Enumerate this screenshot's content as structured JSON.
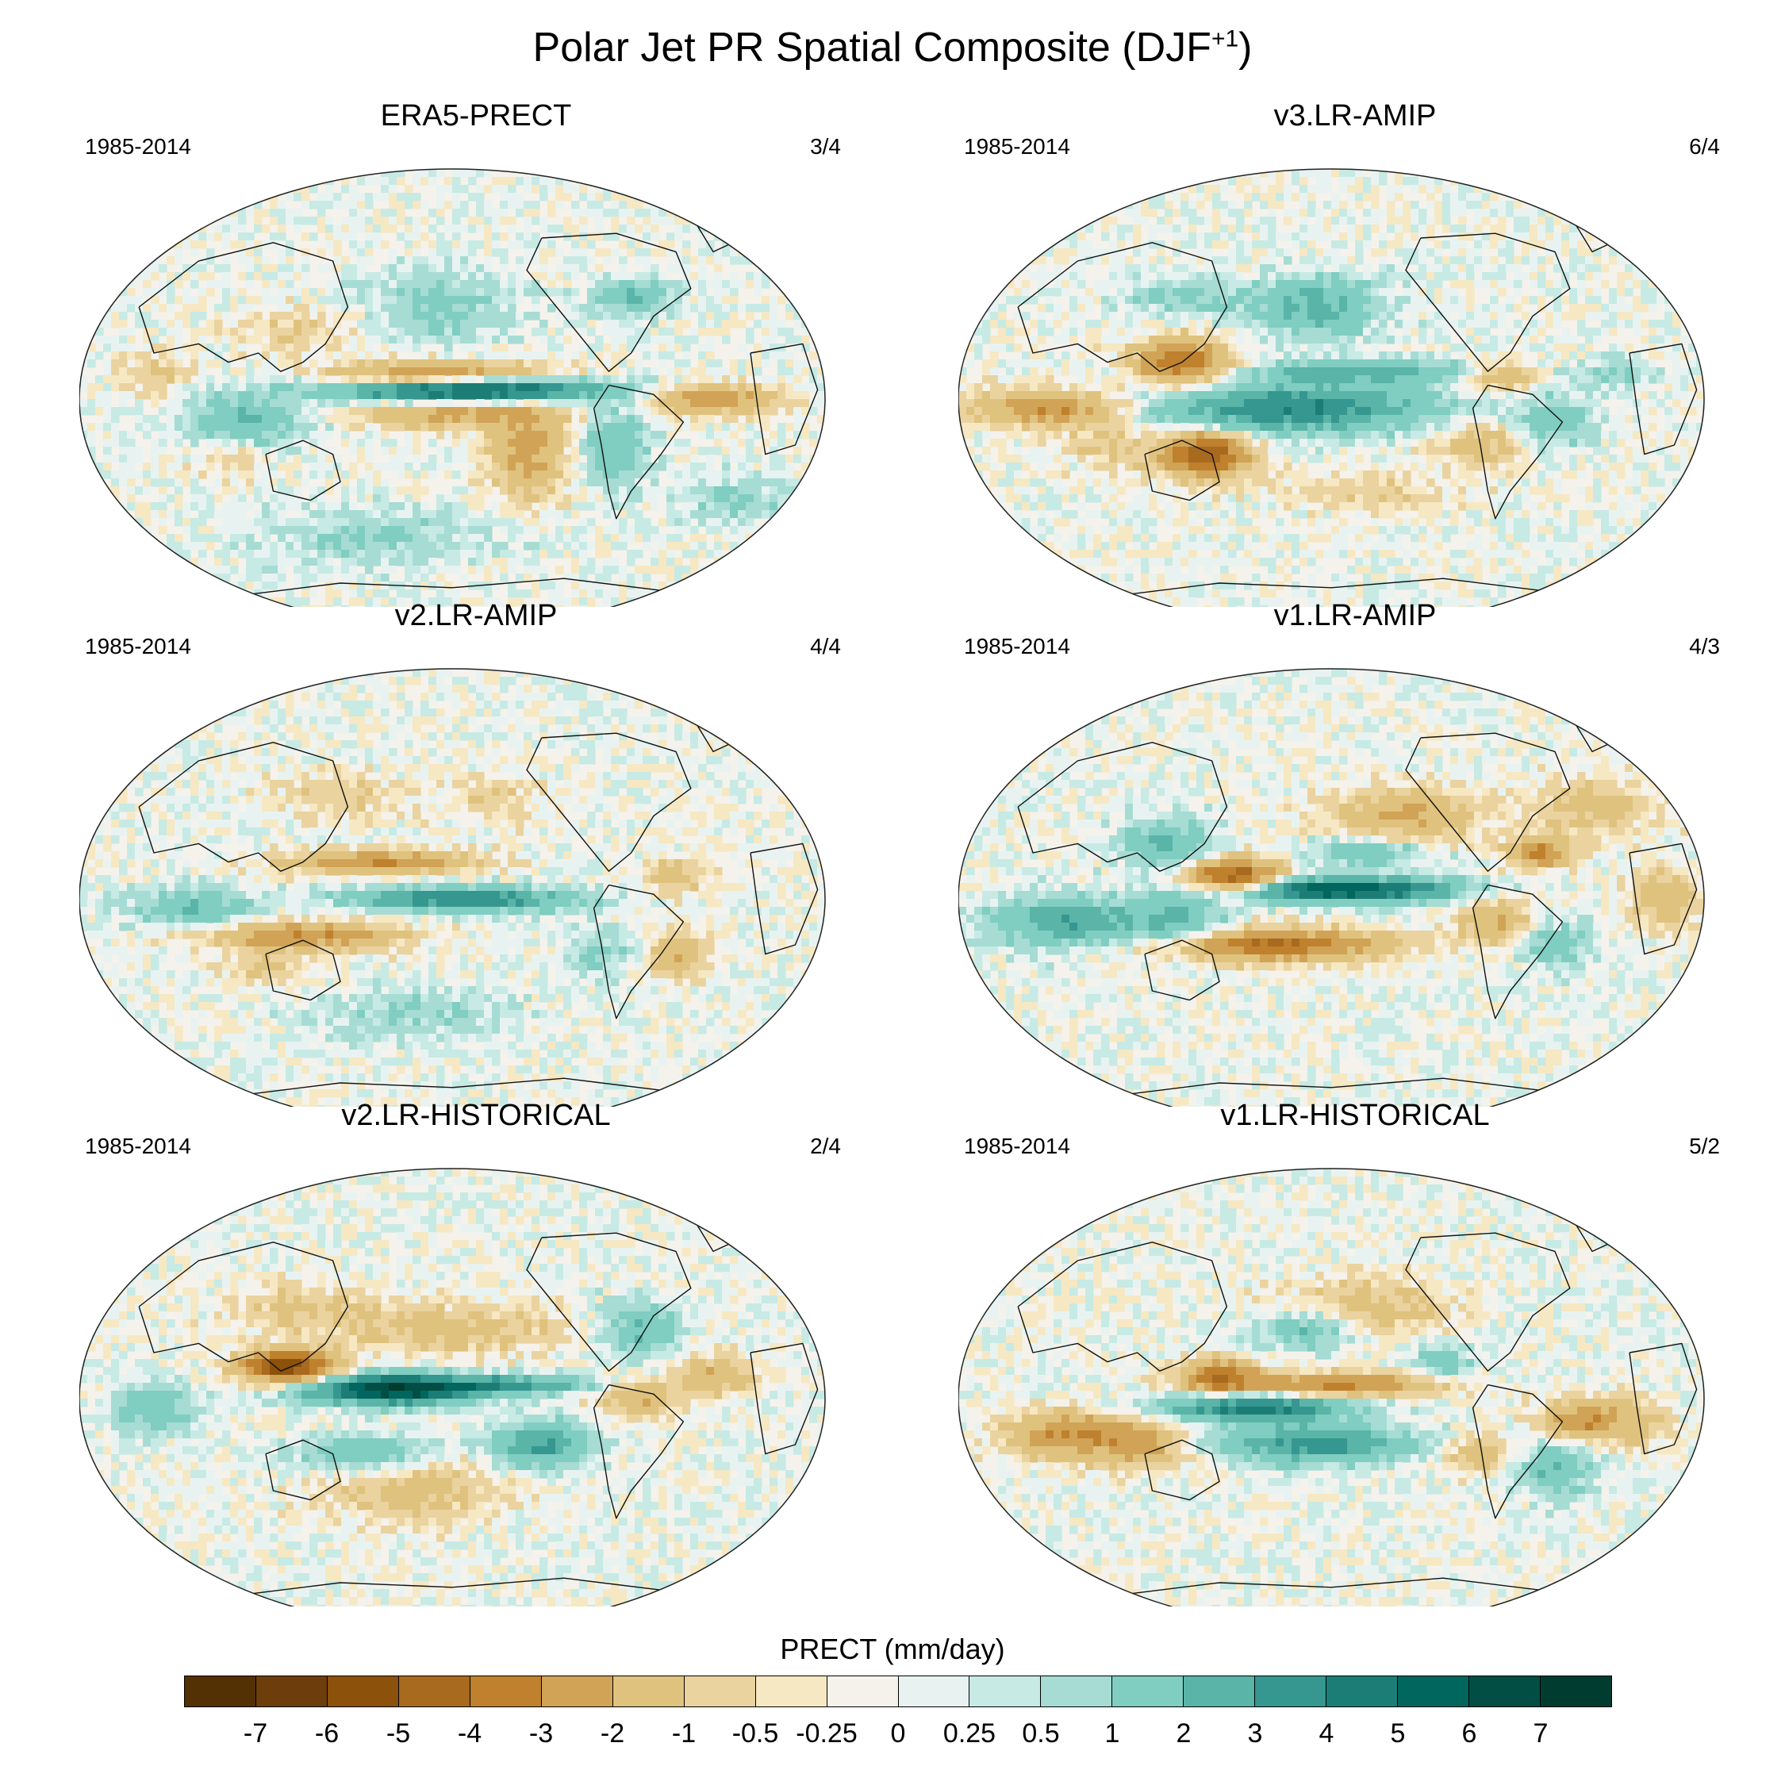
{
  "title_main": "Polar Jet PR Spatial Composite (DJF",
  "title_sup": "+1",
  "title_end": ")",
  "panels": [
    {
      "title": "ERA5-PRECT",
      "period": "1985-2014",
      "ratio": "3/4",
      "pattern": "era5"
    },
    {
      "title": "v3.LR-AMIP",
      "period": "1985-2014",
      "ratio": "6/4",
      "pattern": "v3amip"
    },
    {
      "title": "v2.LR-AMIP",
      "period": "1985-2014",
      "ratio": "4/4",
      "pattern": "v2amip"
    },
    {
      "title": "v1.LR-AMIP",
      "period": "1985-2014",
      "ratio": "4/3",
      "pattern": "v1amip"
    },
    {
      "title": "v2.LR-HISTORICAL",
      "period": "1985-2014",
      "ratio": "2/4",
      "pattern": "v2hist"
    },
    {
      "title": "v1.LR-HISTORICAL",
      "period": "1985-2014",
      "ratio": "5/2",
      "pattern": "v1hist"
    }
  ],
  "colorbar": {
    "title": "PRECT (mm/day)",
    "labels": [
      "-7",
      "-6",
      "-5",
      "-4",
      "-3",
      "-2",
      "-1",
      "-0.5",
      "-0.25",
      "0",
      "0.25",
      "0.5",
      "1",
      "2",
      "3",
      "4",
      "5",
      "6",
      "7"
    ],
    "colors": [
      "#543005",
      "#6d3e0c",
      "#8c510a",
      "#a86a1e",
      "#bf812d",
      "#d1a356",
      "#dfc27d",
      "#ead39f",
      "#f6e8c3",
      "#f5f2ec",
      "#e8f3f1",
      "#c7eae5",
      "#a6dcd4",
      "#80cdc1",
      "#5ab4a8",
      "#35978f",
      "#1c7d76",
      "#01665e",
      "#024e45",
      "#003c30"
    ]
  }
}
